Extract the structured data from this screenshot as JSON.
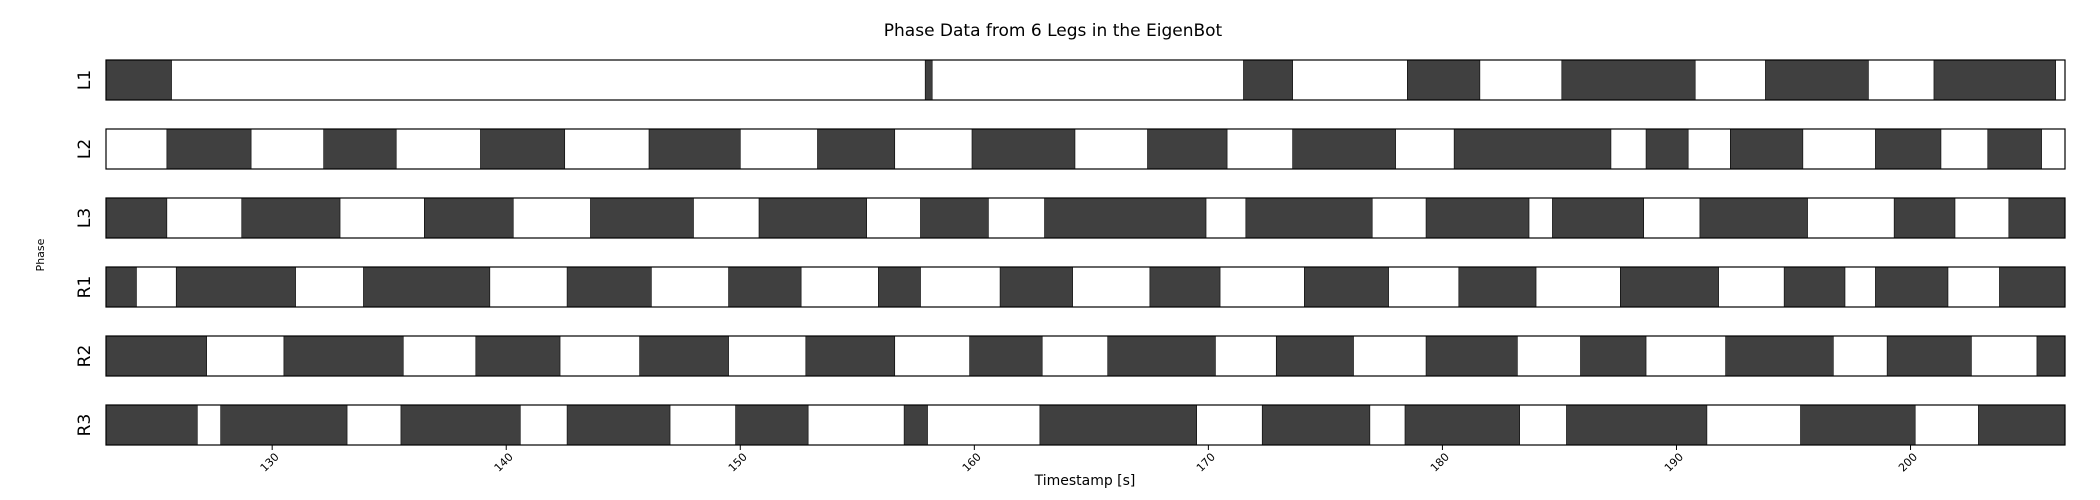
{
  "chart_data": {
    "type": "timeline",
    "title": "Phase Data from 6 Legs in the EigenBot",
    "xlabel": "Timestamp [s]",
    "ylabel": "Phase",
    "xlim": [
      122.9,
      206.6
    ],
    "xticks": [
      130,
      140,
      150,
      160,
      170,
      180,
      190,
      200
    ],
    "colors": {
      "stance": "#404040",
      "swing": "#ffffff",
      "edge": "#000000"
    },
    "lanes": [
      {
        "name": "L1",
        "stance": [
          [
            122.9,
            125.7
          ],
          [
            157.9,
            158.2
          ],
          [
            171.5,
            173.6
          ],
          [
            178.5,
            181.6
          ],
          [
            185.1,
            190.8
          ],
          [
            193.8,
            198.2
          ],
          [
            201.0,
            206.2
          ]
        ]
      },
      {
        "name": "L2",
        "stance": [
          [
            125.5,
            129.1
          ],
          [
            132.2,
            135.3
          ],
          [
            138.9,
            142.5
          ],
          [
            146.1,
            150.0
          ],
          [
            153.3,
            156.6
          ],
          [
            159.9,
            164.3
          ],
          [
            167.4,
            170.8
          ],
          [
            173.6,
            178.0
          ],
          [
            180.5,
            187.2
          ],
          [
            188.7,
            190.5
          ],
          [
            192.3,
            195.4
          ],
          [
            198.5,
            201.3
          ],
          [
            203.3,
            205.6
          ]
        ]
      },
      {
        "name": "L3",
        "stance": [
          [
            122.9,
            125.5
          ],
          [
            128.7,
            132.9
          ],
          [
            136.5,
            140.3
          ],
          [
            143.6,
            148.0
          ],
          [
            150.8,
            155.4
          ],
          [
            157.7,
            160.6
          ],
          [
            163.0,
            169.9
          ],
          [
            171.6,
            177.0
          ],
          [
            179.3,
            183.7
          ],
          [
            184.7,
            188.6
          ],
          [
            191.0,
            195.6
          ],
          [
            199.3,
            201.9
          ],
          [
            204.2,
            206.6
          ]
        ]
      },
      {
        "name": "R1",
        "stance": [
          [
            122.9,
            124.2
          ],
          [
            125.9,
            131.0
          ],
          [
            133.9,
            139.3
          ],
          [
            142.6,
            146.2
          ],
          [
            149.5,
            152.6
          ],
          [
            155.9,
            157.7
          ],
          [
            161.1,
            164.2
          ],
          [
            167.5,
            170.5
          ],
          [
            174.1,
            177.7
          ],
          [
            180.7,
            184.0
          ],
          [
            187.6,
            191.8
          ],
          [
            194.6,
            197.2
          ],
          [
            198.5,
            201.6
          ],
          [
            203.8,
            206.6
          ]
        ]
      },
      {
        "name": "R2",
        "stance": [
          [
            122.9,
            127.2
          ],
          [
            130.5,
            135.6
          ],
          [
            138.7,
            142.3
          ],
          [
            145.7,
            149.5
          ],
          [
            152.8,
            156.6
          ],
          [
            159.8,
            162.9
          ],
          [
            165.7,
            170.3
          ],
          [
            172.9,
            176.2
          ],
          [
            179.3,
            183.2
          ],
          [
            185.9,
            188.7
          ],
          [
            192.1,
            196.7
          ],
          [
            199.0,
            202.6
          ],
          [
            205.4,
            206.6
          ]
        ]
      },
      {
        "name": "R3",
        "stance": [
          [
            122.9,
            126.8
          ],
          [
            127.8,
            133.2
          ],
          [
            135.5,
            140.6
          ],
          [
            142.6,
            147.0
          ],
          [
            149.8,
            152.9
          ],
          [
            157.0,
            158.0
          ],
          [
            162.8,
            169.5
          ],
          [
            172.3,
            176.9
          ],
          [
            178.4,
            183.3
          ],
          [
            185.3,
            191.3
          ],
          [
            195.3,
            200.2
          ],
          [
            202.9,
            206.6
          ]
        ]
      }
    ]
  }
}
